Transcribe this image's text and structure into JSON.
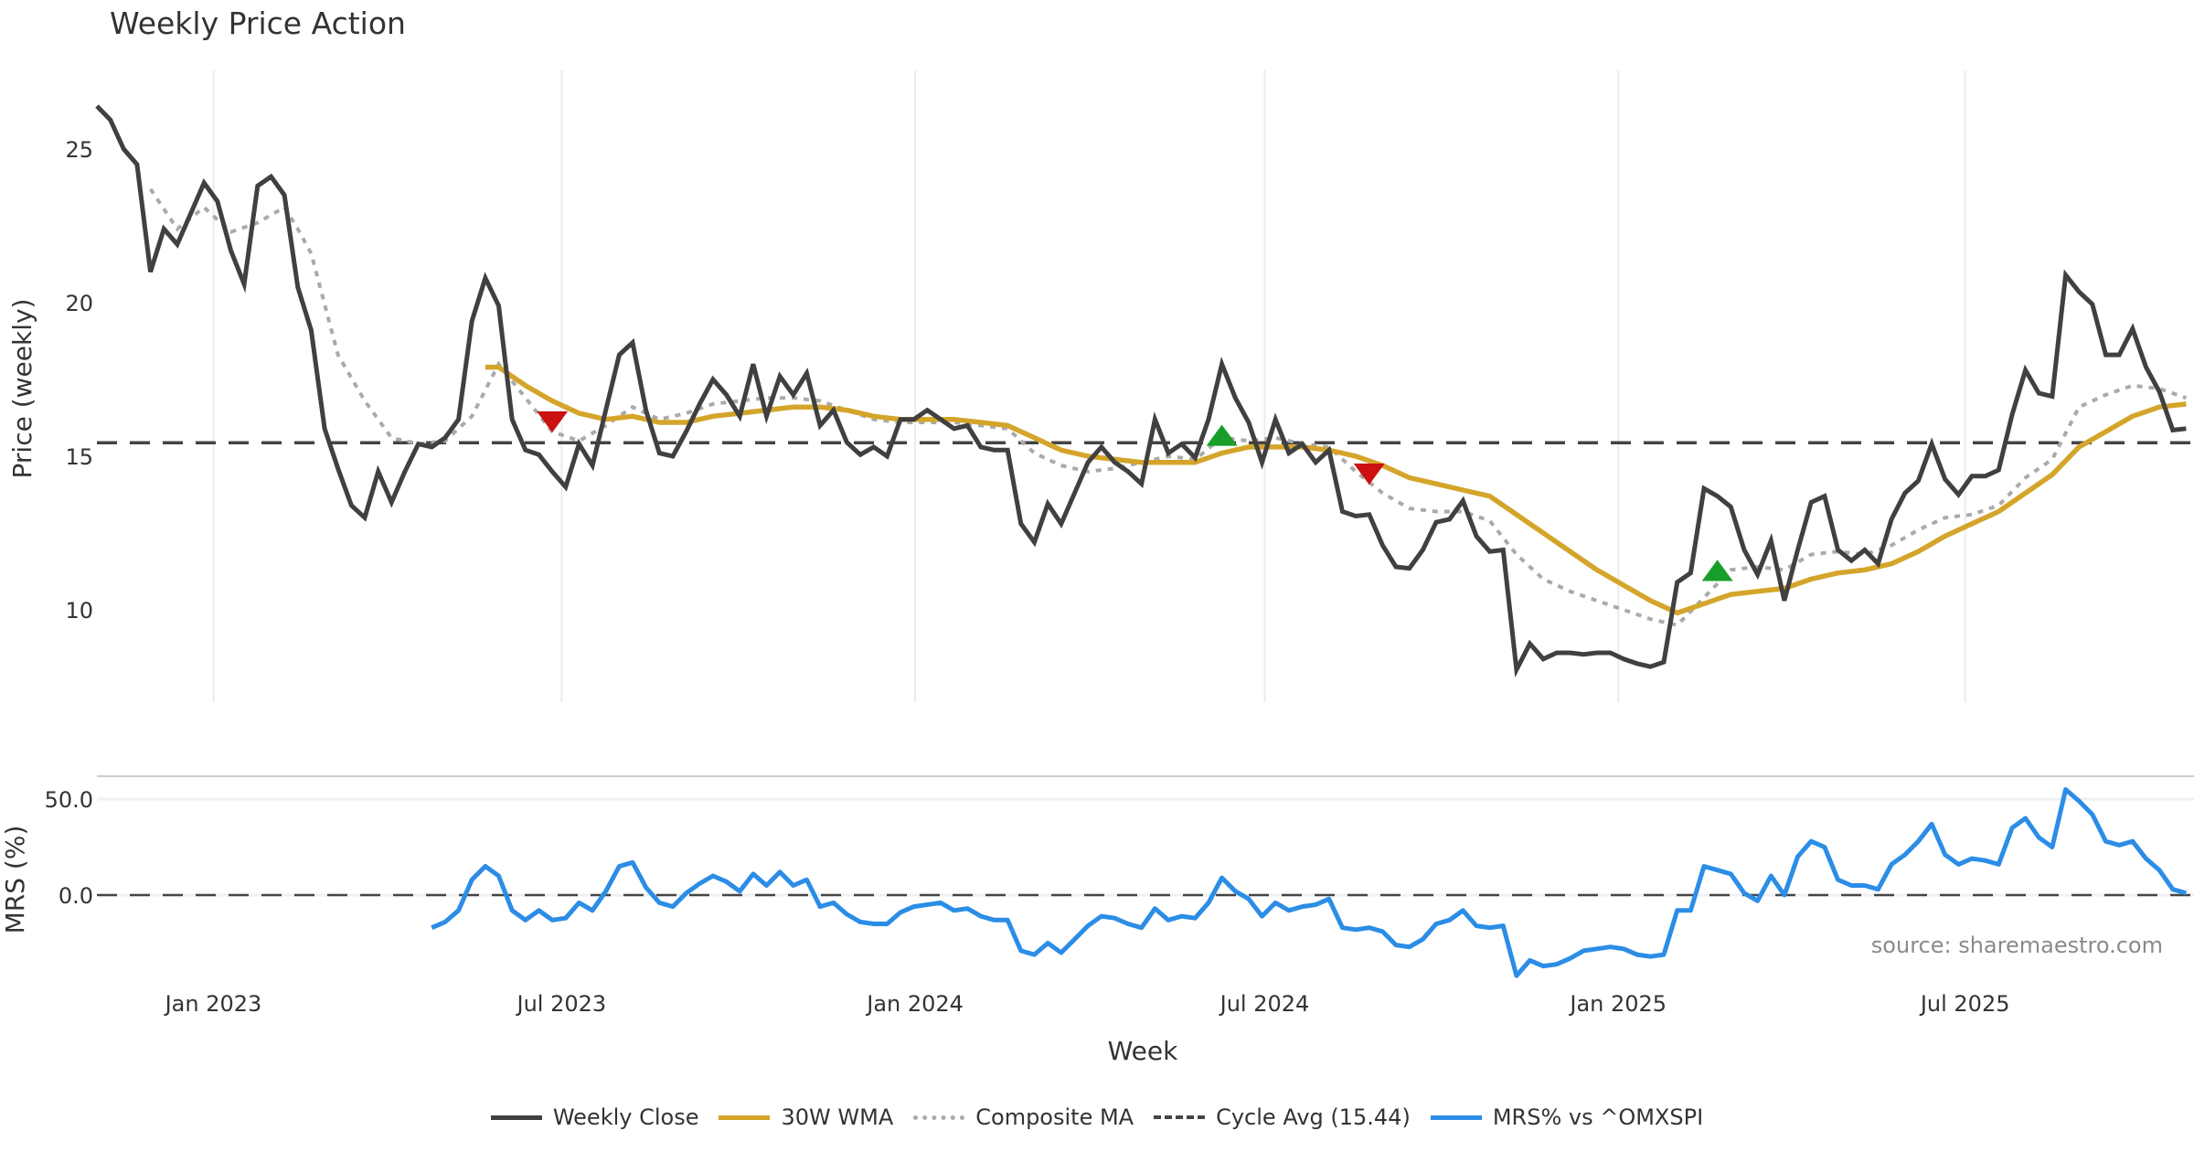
{
  "title": "Weekly Price Action",
  "source": "source: sharemaestro.com",
  "colors": {
    "close": "#404040",
    "wma": "#d4a52a",
    "composite": "#aaaaaa",
    "cycle": "#444444",
    "mrs": "#2b8de6",
    "buy": "#1a9e2a",
    "sell": "#cc1111",
    "grid": "#ececf0"
  },
  "legend": [
    {
      "label": "Weekly Close",
      "key": "close",
      "style": "solid"
    },
    {
      "label": "30W WMA",
      "key": "wma",
      "style": "solid"
    },
    {
      "label": "Composite MA",
      "key": "composite",
      "style": "dotted"
    },
    {
      "label": "Cycle Avg (15.44)",
      "key": "cycle",
      "style": "dashed"
    },
    {
      "label": "MRS% vs ^OMXSPI",
      "key": "mrs",
      "style": "solid"
    }
  ],
  "chart_data": [
    {
      "type": "line",
      "title": "Weekly Price Action",
      "xlabel": "Week",
      "ylabel": "Price (weekly)",
      "ylim": [
        7,
        27.5
      ],
      "xlim": [
        0,
        156.6
      ],
      "yticks": [
        10,
        15,
        20,
        25
      ],
      "xticks": [
        {
          "label": "Jan 2023",
          "week": 8.7
        },
        {
          "label": "Jul 2023",
          "week": 34.7
        },
        {
          "label": "Jan 2024",
          "week": 61.1
        },
        {
          "label": "Jul 2024",
          "week": 87.2
        },
        {
          "label": "Jan 2025",
          "week": 113.6
        },
        {
          "label": "Jul 2025",
          "week": 139.5
        }
      ],
      "grid": "vertical",
      "cycle_avg": 15.44,
      "series": [
        {
          "name": "Weekly Close",
          "key": "close",
          "start_week": 0,
          "values": [
            26.4,
            25.95,
            25.0,
            24.5,
            21.0,
            22.4,
            21.9,
            22.9,
            23.9,
            23.3,
            21.7,
            20.6,
            23.8,
            24.1,
            23.5,
            20.5,
            19.1,
            15.9,
            14.6,
            13.4,
            13.0,
            14.5,
            13.5,
            14.5,
            15.4,
            15.3,
            15.6,
            16.2,
            19.4,
            20.8,
            19.9,
            16.2,
            15.2,
            15.05,
            14.5,
            14.0,
            15.4,
            14.7,
            16.5,
            18.3,
            18.7,
            16.5,
            15.1,
            15.0,
            15.8,
            16.7,
            17.5,
            17.0,
            16.3,
            18.0,
            16.3,
            17.6,
            17.0,
            17.7,
            16.0,
            16.5,
            15.45,
            15.05,
            15.3,
            15.0,
            16.2,
            16.2,
            16.5,
            16.2,
            15.9,
            16.0,
            15.3,
            15.2,
            15.2,
            12.8,
            12.2,
            13.45,
            12.8,
            13.8,
            14.8,
            15.3,
            14.8,
            14.5,
            14.1,
            16.2,
            15.1,
            15.4,
            14.95,
            16.2,
            18.0,
            16.9,
            16.1,
            14.8,
            16.2,
            15.1,
            15.4,
            14.8,
            15.2,
            13.2,
            13.05,
            13.1,
            12.1,
            11.4,
            11.35,
            11.95,
            12.85,
            12.95,
            13.55,
            12.4,
            11.9,
            11.95,
            8.05,
            8.9,
            8.4,
            8.6,
            8.6,
            8.55,
            8.6,
            8.6,
            8.4,
            8.25,
            8.15,
            8.3,
            10.9,
            11.2,
            13.95,
            13.7,
            13.35,
            11.95,
            11.15,
            12.25,
            10.3,
            11.95,
            13.5,
            13.7,
            11.95,
            11.6,
            11.95,
            11.5,
            12.95,
            13.8,
            14.2,
            15.4,
            14.25,
            13.75,
            14.35,
            14.35,
            14.55,
            16.35,
            17.8,
            17.05,
            16.95,
            20.9,
            20.35,
            19.95,
            18.3,
            18.3,
            19.15,
            17.9,
            17.1,
            15.85,
            15.9
          ]
        },
        {
          "name": "30W WMA",
          "key": "wma",
          "weeks": [
            29,
            30,
            32,
            34,
            36,
            38,
            40,
            42,
            44,
            46,
            48,
            50,
            52,
            54,
            56,
            58,
            60,
            62,
            64,
            66,
            68,
            70,
            72,
            74,
            76,
            78,
            80,
            82,
            84,
            86,
            88,
            90,
            92,
            94,
            96,
            98,
            100,
            102,
            104,
            106,
            108,
            110,
            112,
            114,
            116,
            118,
            120,
            122,
            124,
            126,
            128,
            130,
            132,
            134,
            136,
            138,
            140,
            142,
            144,
            146,
            148,
            150,
            152,
            154,
            156
          ],
          "values": [
            17.9,
            17.9,
            17.3,
            16.8,
            16.4,
            16.2,
            16.3,
            16.1,
            16.1,
            16.3,
            16.4,
            16.5,
            16.6,
            16.6,
            16.5,
            16.3,
            16.2,
            16.2,
            16.2,
            16.1,
            16.0,
            15.6,
            15.2,
            15.0,
            14.9,
            14.8,
            14.8,
            14.8,
            15.1,
            15.3,
            15.3,
            15.3,
            15.2,
            15.0,
            14.7,
            14.3,
            14.1,
            13.9,
            13.7,
            13.1,
            12.5,
            11.9,
            11.3,
            10.8,
            10.3,
            9.9,
            10.2,
            10.5,
            10.6,
            10.7,
            11.0,
            11.2,
            11.3,
            11.5,
            11.9,
            12.4,
            12.8,
            13.2,
            13.8,
            14.4,
            15.3,
            15.8,
            16.3,
            16.6,
            16.7
          ]
        },
        {
          "name": "Composite MA",
          "key": "composite",
          "weeks": [
            4,
            6,
            8,
            10,
            12,
            14,
            15,
            16,
            18,
            20,
            22,
            24,
            26,
            28,
            30,
            32,
            34,
            36,
            38,
            40,
            42,
            44,
            46,
            48,
            50,
            52,
            54,
            56,
            58,
            60,
            62,
            64,
            66,
            68,
            70,
            72,
            74,
            76,
            78,
            80,
            82,
            84,
            86,
            88,
            90,
            92,
            94,
            96,
            98,
            100,
            102,
            104,
            106,
            108,
            110,
            112,
            114,
            116,
            118,
            120,
            122,
            124,
            126,
            128,
            130,
            132,
            134,
            136,
            138,
            140,
            142,
            144,
            146,
            148,
            150,
            152,
            154,
            156
          ],
          "values": [
            23.7,
            22.4,
            23.1,
            22.3,
            22.6,
            23.1,
            22.4,
            21.6,
            18.3,
            16.8,
            15.6,
            15.4,
            15.5,
            16.3,
            18.0,
            16.9,
            15.8,
            15.5,
            16.0,
            16.6,
            16.2,
            16.4,
            16.7,
            16.8,
            16.9,
            16.9,
            16.8,
            16.5,
            16.2,
            16.1,
            16.1,
            16.1,
            16.0,
            15.9,
            15.1,
            14.7,
            14.5,
            14.6,
            14.8,
            15.0,
            14.9,
            15.6,
            15.5,
            15.6,
            15.4,
            15.3,
            14.5,
            13.8,
            13.3,
            13.2,
            13.2,
            12.9,
            11.8,
            11.0,
            10.6,
            10.3,
            10.0,
            9.7,
            9.5,
            10.4,
            11.3,
            11.4,
            11.3,
            11.8,
            11.9,
            11.8,
            12.1,
            12.6,
            13.0,
            13.1,
            13.4,
            14.3,
            14.9,
            16.6,
            17.0,
            17.3,
            17.2,
            16.9
          ]
        }
      ],
      "signals": [
        {
          "type": "sell",
          "week": 34,
          "price": 16.2
        },
        {
          "type": "buy",
          "week": 84,
          "price": 15.6
        },
        {
          "type": "sell",
          "week": 95,
          "price": 14.5
        },
        {
          "type": "buy",
          "week": 121,
          "price": 11.2
        }
      ]
    },
    {
      "type": "line",
      "ylabel": "MRS (%)",
      "ylim": [
        -50,
        62
      ],
      "yticks": [
        {
          "value": 50,
          "label": "50.0"
        },
        {
          "value": 0,
          "label": "0.0"
        }
      ],
      "series": [
        {
          "name": "MRS% vs ^OMXSPI",
          "key": "mrs",
          "start_week": 25,
          "values": [
            -17,
            -14,
            -8,
            8,
            15,
            10,
            -8,
            -13,
            -8,
            -13,
            -12,
            -4,
            -8,
            2,
            15,
            17,
            4,
            -4,
            -6,
            1,
            6,
            10,
            7,
            2,
            11,
            5,
            12,
            5,
            8,
            -6,
            -4,
            -10,
            -14,
            -15,
            -15,
            -9,
            -6,
            -5,
            -4,
            -8,
            -7,
            -11,
            -13,
            -13,
            -29,
            -31,
            -25,
            -30,
            -23,
            -16,
            -11,
            -12,
            -15,
            -17,
            -7,
            -13,
            -11,
            -12,
            -4,
            9,
            2,
            -2,
            -11,
            -4,
            -8,
            -6,
            -5,
            -2,
            -17,
            -18,
            -17,
            -19,
            -26,
            -27,
            -23,
            -15,
            -13,
            -8,
            -16,
            -17,
            -16,
            -42,
            -34,
            -37,
            -36,
            -33,
            -29,
            -28,
            -27,
            -28,
            -31,
            -32,
            -31,
            -8,
            -8,
            15,
            13,
            11,
            1,
            -3,
            10,
            0,
            20,
            28,
            25,
            8,
            5,
            5,
            3,
            16,
            21,
            28,
            37,
            21,
            16,
            19,
            18,
            16,
            35,
            40,
            30,
            25,
            55,
            49,
            42,
            28,
            26,
            28,
            19,
            13,
            3,
            1
          ]
        }
      ]
    }
  ]
}
